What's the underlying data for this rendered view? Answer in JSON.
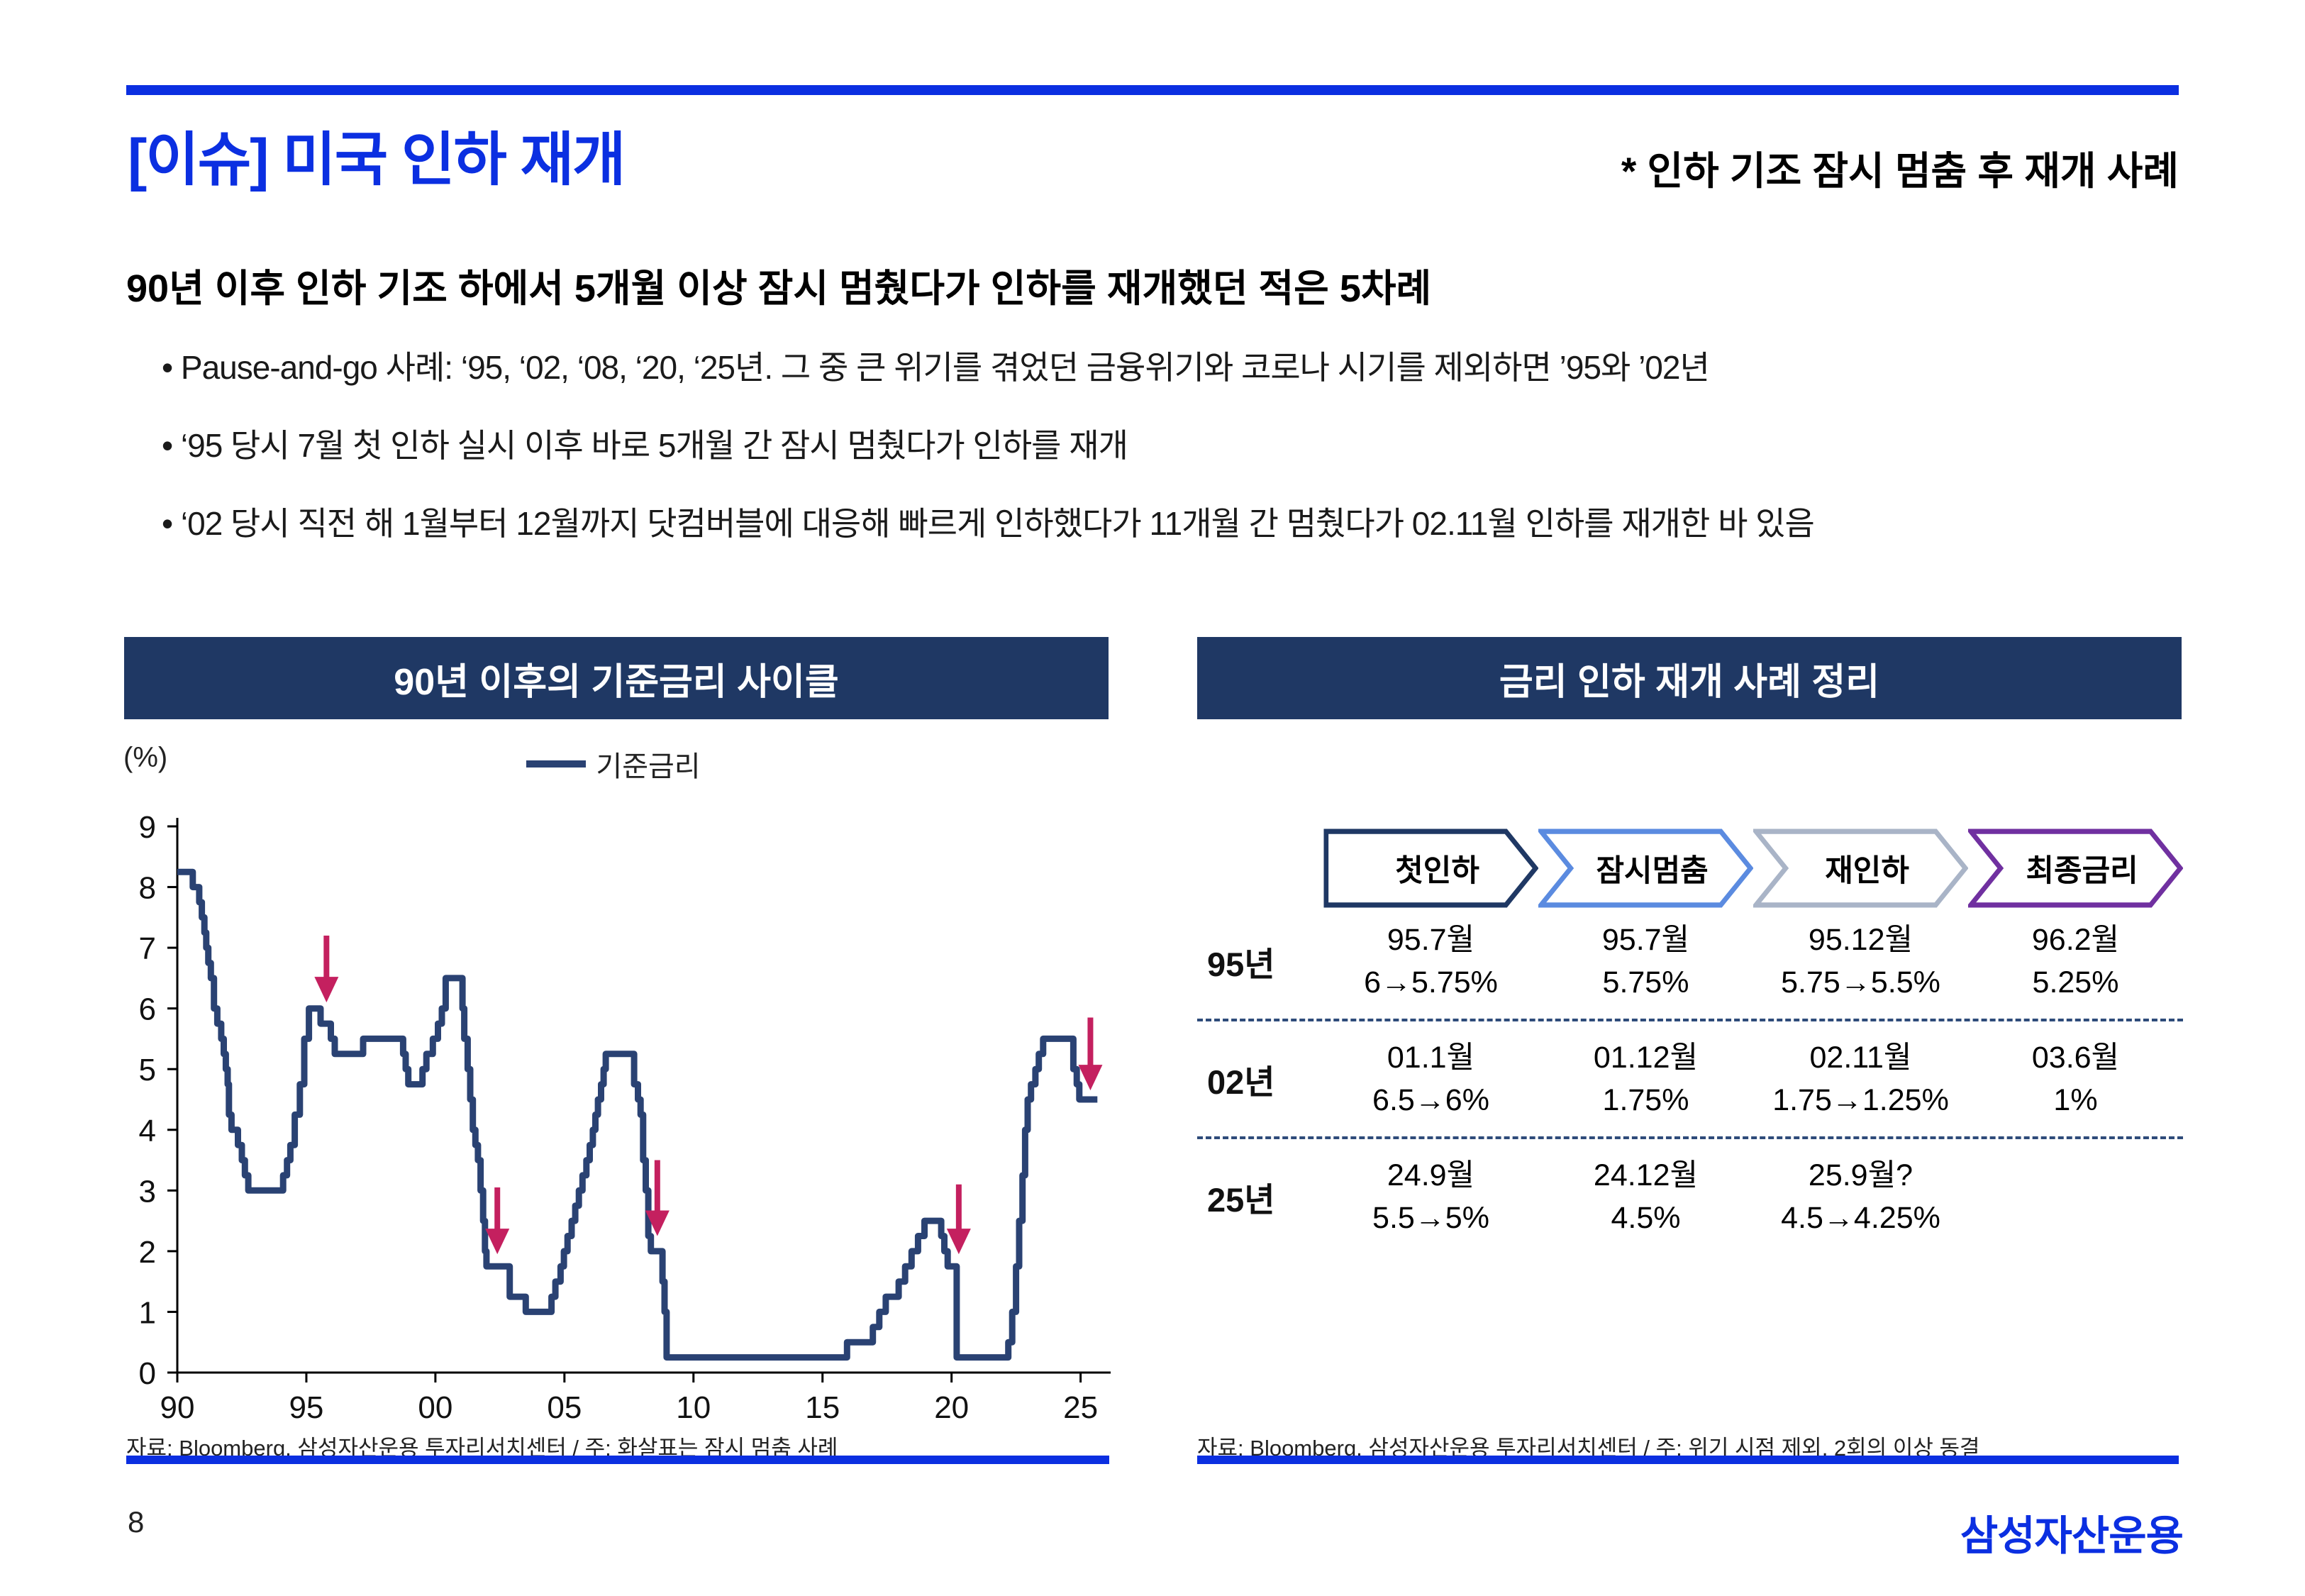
{
  "colors": {
    "accent_blue": "#0B2FE1",
    "header_navy": "#1F3864",
    "line_navy": "#2A4273",
    "arrow_crimson": "#C4205F"
  },
  "header": {
    "title": "[이슈] 미국 인하 재개",
    "note": "* 인하 기조 잠시 멈춤 후 재개 사례"
  },
  "summary": {
    "heading": "90년 이후 인하 기조 하에서 5개월 이상 잠시 멈췄다가 인하를 재개했던 적은 5차례",
    "bullets": [
      "• Pause-and-go 사례: ‘95, ‘02, ‘08, ‘20, ‘25년. 그 중 큰 위기를 겪었던 금융위기와 코로나 시기를 제외하면 ’95와 ’02년",
      "• ‘95 당시 7월 첫 인하 실시 이후 바로 5개월 간 잠시 멈췄다가 인하를 재개",
      "• ‘02 당시 직전 해 1월부터 12월까지 닷컴버블에 대응해 빠르게 인하했다가 11개월 간 멈췄다가 02.11월 인하를 재개한 바 있음"
    ]
  },
  "left_panel": {
    "title": "90년 이후의 기준금리 사이클",
    "unit_label": "(%)",
    "legend": "기준금리",
    "source": "자료: Bloomberg, 삼성자산운용 투자리서치센터 / 주: 화살표는 잠시 멈춤 사례"
  },
  "right_panel": {
    "title": "금리 인하 재개 사례 정리",
    "stages": [
      "첫인하",
      "잠시멈춤",
      "재인하",
      "최종금리"
    ],
    "stage_colors": [
      "#1F3864",
      "#5B8BE0",
      "#A9B4C7",
      "#7030A0"
    ],
    "rows": [
      {
        "label": "95년",
        "cells": [
          {
            "l1": "95.7월",
            "l2": "6→5.75%"
          },
          {
            "l1": "95.7월",
            "l2": "5.75%"
          },
          {
            "l1": "95.12월",
            "l2": "5.75→5.5%"
          },
          {
            "l1": "96.2월",
            "l2": "5.25%"
          }
        ]
      },
      {
        "label": "02년",
        "cells": [
          {
            "l1": "01.1월",
            "l2": "6.5→6%"
          },
          {
            "l1": "01.12월",
            "l2": "1.75%"
          },
          {
            "l1": "02.11월",
            "l2": "1.75→1.25%"
          },
          {
            "l1": "03.6월",
            "l2": "1%"
          }
        ]
      },
      {
        "label": "25년",
        "cells": [
          {
            "l1": "24.9월",
            "l2": "5.5→5%"
          },
          {
            "l1": "24.12월",
            "l2": "4.5%"
          },
          {
            "l1": "25.9월?",
            "l2": "4.5→4.25%"
          },
          {
            "l1": "",
            "l2": ""
          }
        ]
      }
    ],
    "source": "자료: Bloomberg, 삼성자산운용 투자리서치센터 / 주: 위기 시점 제외, 2회의 이상 동결"
  },
  "footer": {
    "page_number": "8",
    "logo": "삼성자산운용"
  },
  "chart_data": {
    "type": "line",
    "title": "90년 이후의 기준금리 사이클",
    "series_name": "기준금리",
    "ylabel": "(%)",
    "ylim": [
      0,
      9
    ],
    "y_ticks": [
      0,
      1,
      2,
      3,
      4,
      5,
      6,
      7,
      8,
      9
    ],
    "xlim": [
      1990,
      2026
    ],
    "x_ticks": [
      "90",
      "95",
      "00",
      "05",
      "10",
      "15",
      "20",
      "25"
    ],
    "x_tick_years": [
      1990,
      1995,
      2000,
      2005,
      2010,
      2015,
      2020,
      2025
    ],
    "grid": false,
    "legend_position": "top-center",
    "line_color": "#2A4273",
    "arrow_color": "#C4205F",
    "end_year": 2025.65,
    "points": [
      [
        1990.0,
        8.25
      ],
      [
        1990.6,
        8.0
      ],
      [
        1990.85,
        7.75
      ],
      [
        1990.95,
        7.5
      ],
      [
        1991.05,
        7.25
      ],
      [
        1991.12,
        7.0
      ],
      [
        1991.2,
        6.75
      ],
      [
        1991.3,
        6.5
      ],
      [
        1991.42,
        6.0
      ],
      [
        1991.55,
        5.75
      ],
      [
        1991.7,
        5.5
      ],
      [
        1991.8,
        5.25
      ],
      [
        1991.88,
        5.0
      ],
      [
        1991.95,
        4.75
      ],
      [
        1992.0,
        4.25
      ],
      [
        1992.1,
        4.0
      ],
      [
        1992.35,
        3.75
      ],
      [
        1992.5,
        3.5
      ],
      [
        1992.62,
        3.25
      ],
      [
        1992.75,
        3.0
      ],
      [
        1994.1,
        3.25
      ],
      [
        1994.25,
        3.5
      ],
      [
        1994.38,
        3.75
      ],
      [
        1994.55,
        4.25
      ],
      [
        1994.75,
        4.75
      ],
      [
        1994.92,
        5.5
      ],
      [
        1995.1,
        6.0
      ],
      [
        1995.55,
        5.75
      ],
      [
        1995.95,
        5.5
      ],
      [
        1996.1,
        5.25
      ],
      [
        1997.2,
        5.5
      ],
      [
        1998.75,
        5.25
      ],
      [
        1998.85,
        5.0
      ],
      [
        1998.95,
        4.75
      ],
      [
        1999.5,
        5.0
      ],
      [
        1999.65,
        5.25
      ],
      [
        1999.9,
        5.5
      ],
      [
        2000.1,
        5.75
      ],
      [
        2000.25,
        6.0
      ],
      [
        2000.4,
        6.5
      ],
      [
        2001.05,
        6.0
      ],
      [
        2001.12,
        5.5
      ],
      [
        2001.25,
        5.0
      ],
      [
        2001.35,
        4.5
      ],
      [
        2001.45,
        4.0
      ],
      [
        2001.55,
        3.75
      ],
      [
        2001.65,
        3.5
      ],
      [
        2001.75,
        3.0
      ],
      [
        2001.85,
        2.5
      ],
      [
        2001.92,
        2.0
      ],
      [
        2001.98,
        1.75
      ],
      [
        2002.88,
        1.25
      ],
      [
        2003.5,
        1.0
      ],
      [
        2004.5,
        1.25
      ],
      [
        2004.65,
        1.5
      ],
      [
        2004.85,
        1.75
      ],
      [
        2004.98,
        2.0
      ],
      [
        2005.12,
        2.25
      ],
      [
        2005.28,
        2.5
      ],
      [
        2005.42,
        2.75
      ],
      [
        2005.56,
        3.0
      ],
      [
        2005.7,
        3.25
      ],
      [
        2005.85,
        3.5
      ],
      [
        2005.98,
        3.75
      ],
      [
        2006.1,
        4.0
      ],
      [
        2006.2,
        4.25
      ],
      [
        2006.3,
        4.5
      ],
      [
        2006.42,
        4.75
      ],
      [
        2006.52,
        5.0
      ],
      [
        2006.6,
        5.25
      ],
      [
        2007.7,
        4.75
      ],
      [
        2007.85,
        4.5
      ],
      [
        2007.95,
        4.25
      ],
      [
        2008.05,
        3.5
      ],
      [
        2008.15,
        3.0
      ],
      [
        2008.25,
        2.25
      ],
      [
        2008.35,
        2.0
      ],
      [
        2008.8,
        1.5
      ],
      [
        2008.88,
        1.0
      ],
      [
        2008.96,
        0.25
      ],
      [
        2015.95,
        0.5
      ],
      [
        2016.95,
        0.75
      ],
      [
        2017.2,
        1.0
      ],
      [
        2017.45,
        1.25
      ],
      [
        2017.95,
        1.5
      ],
      [
        2018.2,
        1.75
      ],
      [
        2018.45,
        2.0
      ],
      [
        2018.7,
        2.25
      ],
      [
        2018.95,
        2.5
      ],
      [
        2019.6,
        2.25
      ],
      [
        2019.72,
        2.0
      ],
      [
        2019.85,
        1.75
      ],
      [
        2020.2,
        0.25
      ],
      [
        2022.2,
        0.5
      ],
      [
        2022.35,
        1.0
      ],
      [
        2022.5,
        1.75
      ],
      [
        2022.62,
        2.5
      ],
      [
        2022.75,
        3.25
      ],
      [
        2022.85,
        4.0
      ],
      [
        2022.95,
        4.5
      ],
      [
        2023.08,
        4.75
      ],
      [
        2023.25,
        5.0
      ],
      [
        2023.38,
        5.25
      ],
      [
        2023.55,
        5.5
      ],
      [
        2024.72,
        5.0
      ],
      [
        2024.85,
        4.75
      ],
      [
        2024.95,
        4.5
      ]
    ],
    "arrows": [
      {
        "x": 1995.78,
        "tail": 7.2,
        "tip": 6.1
      },
      {
        "x": 2002.4,
        "tail": 3.05,
        "tip": 1.95
      },
      {
        "x": 2008.6,
        "tail": 3.5,
        "tip": 2.25
      },
      {
        "x": 2020.28,
        "tail": 3.1,
        "tip": 1.95
      },
      {
        "x": 2025.38,
        "tail": 5.85,
        "tip": 4.65
      }
    ]
  }
}
